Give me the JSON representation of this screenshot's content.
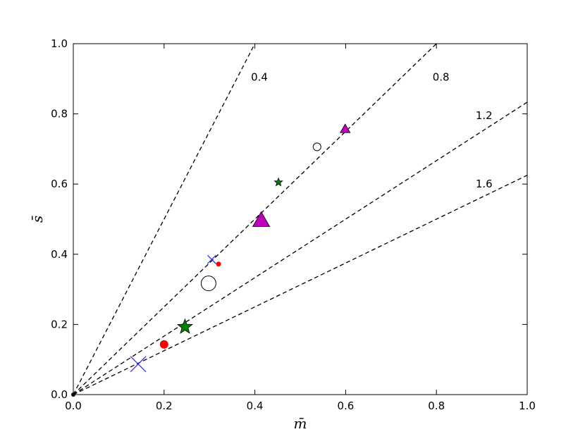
{
  "chart_data": {
    "type": "scatter",
    "title": "",
    "xlabel": "m̄",
    "ylabel": "s̄",
    "xlim": [
      0.0,
      1.0
    ],
    "ylim": [
      0.0,
      1.0
    ],
    "grid": false,
    "x_ticks": [
      "0.0",
      "0.2",
      "0.4",
      "0.6",
      "0.8",
      "1.0"
    ],
    "y_ticks": [
      "0.0",
      "0.2",
      "0.4",
      "0.6",
      "0.8",
      "1.0"
    ],
    "reference_lines": [
      {
        "label": "0.4",
        "slope": 2.5,
        "label_x": 0.41,
        "label_y": 0.905
      },
      {
        "label": "0.8",
        "slope": 1.25,
        "label_x": 0.81,
        "label_y": 0.905
      },
      {
        "label": "1.2",
        "slope": 0.8333,
        "label_x": 0.905,
        "label_y": 0.795
      },
      {
        "label": "1.6",
        "slope": 0.625,
        "label_x": 0.905,
        "label_y": 0.6
      }
    ],
    "points": [
      {
        "x": 0.143,
        "y": 0.087,
        "marker": "x",
        "color": "#3333ff",
        "size": "large"
      },
      {
        "x": 0.305,
        "y": 0.385,
        "marker": "x",
        "color": "#3333ff",
        "size": "small"
      },
      {
        "x": 0.2,
        "y": 0.143,
        "marker": "circle",
        "color": "#ff0000",
        "size": "large"
      },
      {
        "x": 0.32,
        "y": 0.372,
        "marker": "circle",
        "color": "#ff0000",
        "size": "small"
      },
      {
        "x": 0.298,
        "y": 0.317,
        "marker": "open-circle",
        "color": "#000000",
        "size": "large"
      },
      {
        "x": 0.537,
        "y": 0.706,
        "marker": "open-circle",
        "color": "#000000",
        "size": "small"
      },
      {
        "x": 0.246,
        "y": 0.193,
        "marker": "star",
        "color": "#008000",
        "size": "large"
      },
      {
        "x": 0.452,
        "y": 0.605,
        "marker": "star",
        "color": "#008000",
        "size": "small"
      },
      {
        "x": 0.414,
        "y": 0.497,
        "marker": "triangle",
        "color": "#bf00bf",
        "size": "large"
      },
      {
        "x": 0.599,
        "y": 0.757,
        "marker": "triangle",
        "color": "#bf00bf",
        "size": "small"
      }
    ]
  }
}
